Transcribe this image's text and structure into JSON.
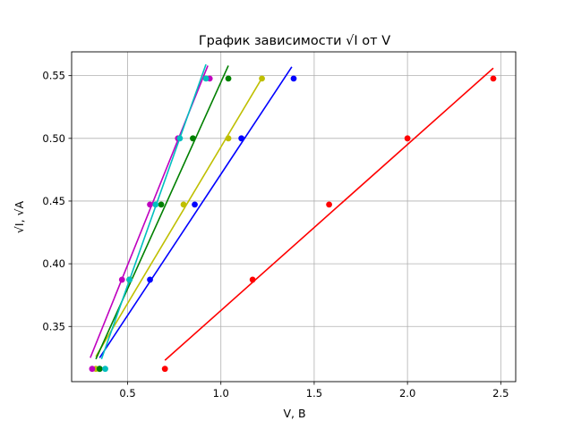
{
  "chart_data": {
    "type": "scatter",
    "title": "График зависимости √I от V",
    "xlabel": "V, В",
    "ylabel": "√I, √A",
    "xlim": [
      0.2,
      2.58
    ],
    "ylim": [
      0.306,
      0.569
    ],
    "xticks": [
      0.5,
      1.0,
      1.5,
      2.0,
      2.5
    ],
    "xtick_labels": [
      "0.5",
      "1.0",
      "1.5",
      "2.0",
      "2.5"
    ],
    "yticks": [
      0.35,
      0.4,
      0.45,
      0.5,
      0.55
    ],
    "ytick_labels": [
      "0.35",
      "0.40",
      "0.45",
      "0.50",
      "0.55"
    ],
    "grid": true,
    "legend": "none",
    "series": [
      {
        "color": "#ff0000",
        "points": [
          [
            0.7,
            0.3162
          ],
          [
            1.17,
            0.3873
          ],
          [
            1.58,
            0.4472
          ],
          [
            2.0,
            0.5
          ],
          [
            2.46,
            0.5477
          ]
        ],
        "fit": [
          [
            0.7,
            0.323
          ],
          [
            2.46,
            0.556
          ]
        ]
      },
      {
        "color": "#0000ff",
        "points": [
          [
            0.35,
            0.3162
          ],
          [
            0.62,
            0.3873
          ],
          [
            0.86,
            0.4472
          ],
          [
            1.11,
            0.5
          ],
          [
            1.39,
            0.5477
          ]
        ],
        "fit": [
          [
            0.35,
            0.325
          ],
          [
            1.38,
            0.557
          ]
        ]
      },
      {
        "color": "#bfbf00",
        "points": [
          [
            0.33,
            0.3162
          ],
          [
            0.51,
            0.3873
          ],
          [
            0.8,
            0.4472
          ],
          [
            1.04,
            0.5
          ],
          [
            1.22,
            0.5477
          ]
        ],
        "fit": [
          [
            0.33,
            0.326
          ],
          [
            1.22,
            0.548
          ]
        ]
      },
      {
        "color": "#008000",
        "points": [
          [
            0.35,
            0.3162
          ],
          [
            0.51,
            0.3873
          ],
          [
            0.68,
            0.4472
          ],
          [
            0.85,
            0.5
          ],
          [
            1.04,
            0.5477
          ]
        ],
        "fit": [
          [
            0.33,
            0.324
          ],
          [
            1.04,
            0.558
          ]
        ]
      },
      {
        "color": "#bf00bf",
        "points": [
          [
            0.31,
            0.3162
          ],
          [
            0.47,
            0.3873
          ],
          [
            0.62,
            0.4472
          ],
          [
            0.77,
            0.5
          ],
          [
            0.94,
            0.5477
          ]
        ],
        "fit": [
          [
            0.3,
            0.325
          ],
          [
            0.93,
            0.558
          ]
        ]
      },
      {
        "color": "#00bfbf",
        "points": [
          [
            0.38,
            0.3162
          ],
          [
            0.51,
            0.3873
          ],
          [
            0.65,
            0.4472
          ],
          [
            0.78,
            0.5
          ],
          [
            0.92,
            0.5477
          ]
        ],
        "fit": [
          [
            0.36,
            0.324
          ],
          [
            0.92,
            0.559
          ]
        ]
      }
    ]
  }
}
